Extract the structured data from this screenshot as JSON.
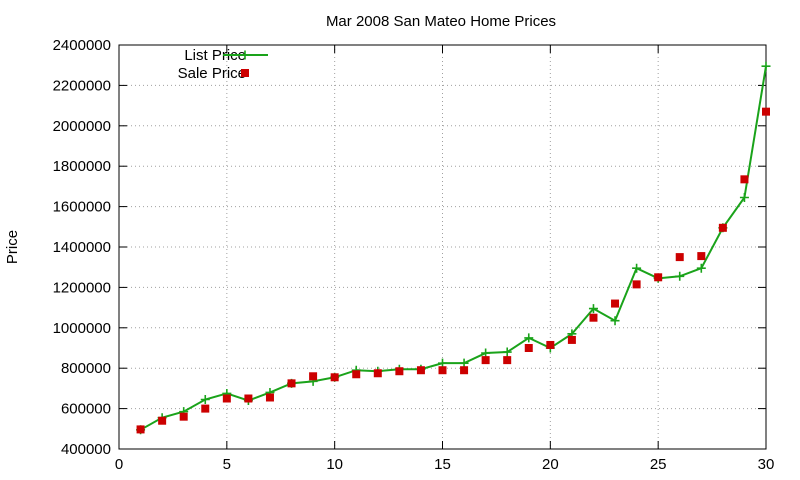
{
  "chart_data": {
    "type": "line",
    "title": "Mar 2008 San Mateo Home Prices",
    "ylabel": "Price",
    "xlabel": "",
    "xlim": [
      0,
      30
    ],
    "ylim": [
      400000,
      2400000
    ],
    "xticks": [
      0,
      5,
      10,
      15,
      20,
      25,
      30
    ],
    "yticks": [
      400000,
      600000,
      800000,
      1000000,
      1200000,
      1400000,
      1600000,
      1800000,
      2000000,
      2200000,
      2400000
    ],
    "grid": true,
    "legend_position": "top-left",
    "series": [
      {
        "name": "List Price",
        "style": "line-with-plus-markers",
        "color": "#1aa31a",
        "x": [
          1,
          2,
          3,
          4,
          5,
          6,
          7,
          8,
          9,
          10,
          11,
          12,
          13,
          14,
          15,
          16,
          17,
          18,
          19,
          20,
          21,
          22,
          23,
          24,
          25,
          26,
          27,
          28,
          29,
          30
        ],
        "values": [
          495000,
          555000,
          585000,
          645000,
          675000,
          640000,
          680000,
          725000,
          735000,
          755000,
          790000,
          785000,
          795000,
          795000,
          825000,
          825000,
          875000,
          880000,
          950000,
          900000,
          970000,
          1095000,
          1035000,
          1295000,
          1245000,
          1255000,
          1295000,
          1495000,
          1645000,
          2295000
        ]
      },
      {
        "name": "Sale Price",
        "style": "square-markers",
        "color": "#cc0000",
        "x": [
          1,
          2,
          3,
          4,
          5,
          6,
          7,
          8,
          9,
          10,
          11,
          12,
          13,
          14,
          15,
          16,
          17,
          18,
          19,
          20,
          21,
          22,
          23,
          24,
          25,
          26,
          27,
          28,
          29,
          30
        ],
        "values": [
          497000,
          540000,
          560000,
          600000,
          650000,
          650000,
          655000,
          725000,
          760000,
          755000,
          770000,
          775000,
          785000,
          790000,
          790000,
          790000,
          840000,
          840000,
          900000,
          915000,
          940000,
          1050000,
          1120000,
          1215000,
          1250000,
          1350000,
          1355000,
          1495000,
          1735000,
          2070000
        ]
      }
    ]
  }
}
